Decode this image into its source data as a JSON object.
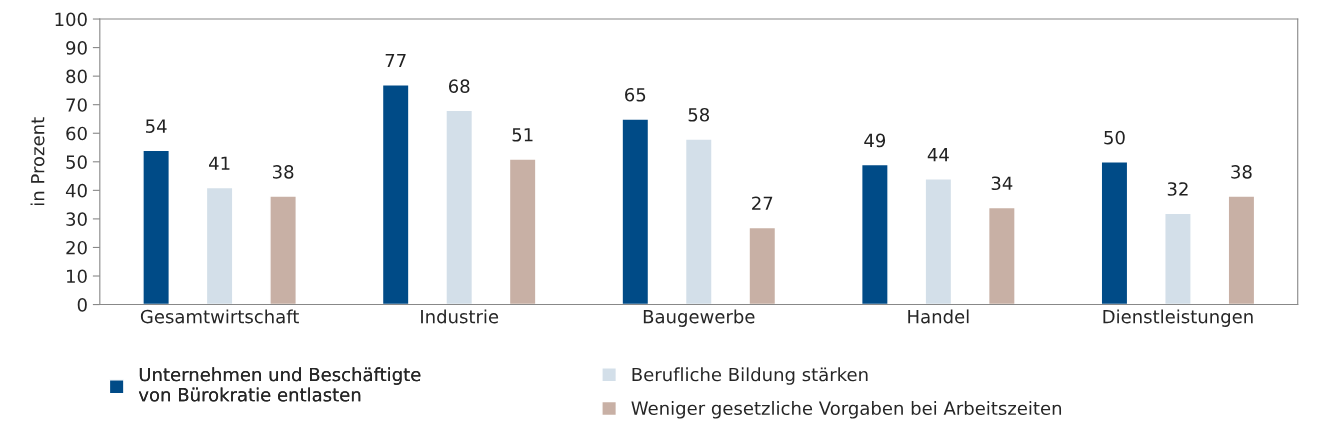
{
  "chart_data": {
    "type": "bar",
    "ylabel": "in Prozent",
    "categories": [
      "Gesamtwirtschaft",
      "Industrie",
      "Baugewerbe",
      "Handel",
      "Dienstleistungen"
    ],
    "series": [
      {
        "name": "Unternehmen und Beschäftigte\nvon Bürokratie entlasten",
        "color": "#004b87",
        "values": [
          54,
          77,
          65,
          49,
          50
        ]
      },
      {
        "name": "Berufliche Bildung stärken",
        "color": "#d3dfe9",
        "values": [
          41,
          68,
          58,
          44,
          32
        ]
      },
      {
        "name": "Weniger gesetzliche Vorgaben bei Arbeitszeiten",
        "color": "#c8b0a5",
        "values": [
          38,
          51,
          27,
          34,
          38
        ]
      }
    ],
    "ylim": [
      0,
      100
    ],
    "yticks": [
      0,
      10,
      20,
      30,
      40,
      50,
      60,
      70,
      80,
      90,
      100
    ],
    "data_labels": true,
    "grid": false,
    "legend": "bottom"
  }
}
